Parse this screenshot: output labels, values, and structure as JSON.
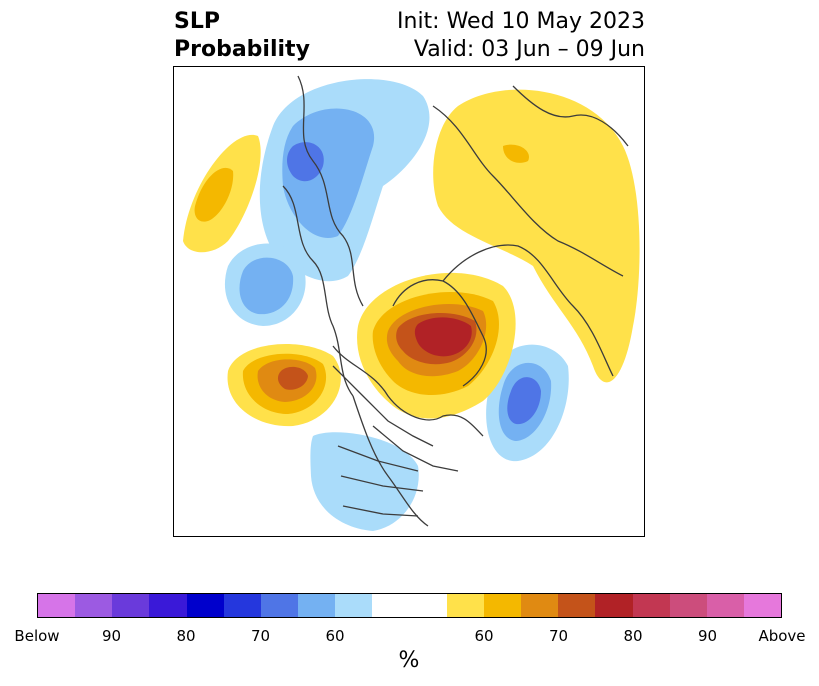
{
  "title": {
    "left_line1": "SLP",
    "left_line2": "Probability",
    "right_line1": "Init: Wed 10 May 2023",
    "right_line2": "Valid: 03 Jun – 09 Jun"
  },
  "map": {
    "projection": "north-polar stereographic",
    "region": "Northern Hemisphere (North America, Arctic, Eurasia)",
    "colors": {
      "blue_60": "#aadcfa",
      "blue_70": "#74b1f2",
      "blue_80": "#4f75e6",
      "yellow_50": "#ffe14a",
      "yellow_60": "#f4b800",
      "orange_70": "#e08a12",
      "orange_80": "#c4531a",
      "red_90": "#b12226",
      "coast": "#3c3c3c"
    }
  },
  "colorbar": {
    "colors": [
      "#d674e8",
      "#9c5ae2",
      "#6a3adb",
      "#3a19d8",
      "#0000cc",
      "#2537dd",
      "#4f75e6",
      "#74b1f2",
      "#aadcfa",
      "#ffffff",
      "#ffffff",
      "#ffe14a",
      "#f4b800",
      "#e08a12",
      "#c4531a",
      "#b12226",
      "#c23752",
      "#cc4d7c",
      "#d95fa8",
      "#e678dc"
    ],
    "tick_labels": [
      "Below",
      "90",
      "80",
      "70",
      "60",
      "60",
      "70",
      "80",
      "90",
      "Above"
    ],
    "units": "%"
  }
}
